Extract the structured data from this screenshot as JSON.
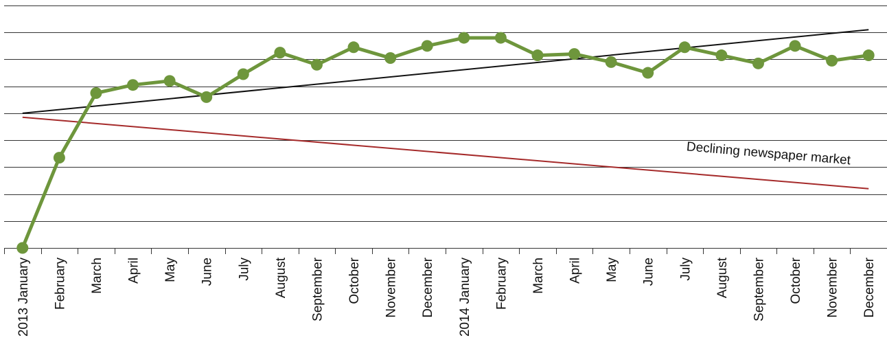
{
  "chart_data": {
    "type": "line",
    "title": "",
    "xlabel": "",
    "ylabel": "",
    "ylim": [
      0,
      9
    ],
    "grid": true,
    "legend": "none",
    "categories": [
      "2013 January",
      "February",
      "March",
      "April",
      "May",
      "June",
      "July",
      "August",
      "September",
      "October",
      "November",
      "December",
      "2014 January",
      "February",
      "March",
      "April",
      "May",
      "June",
      "July",
      "August",
      "September",
      "October",
      "November",
      "December"
    ],
    "series": [
      {
        "values": [
          0.0,
          3.35,
          5.75,
          6.05,
          6.2,
          5.6,
          6.45,
          7.25,
          6.8,
          7.45,
          7.05,
          7.5,
          7.8,
          7.8,
          7.15,
          7.2,
          6.9,
          6.5,
          7.45,
          7.15,
          6.85,
          7.5,
          6.95,
          7.15
        ],
        "color": "#6e963c"
      }
    ],
    "trendlines": [
      {
        "start": [
          1,
          5.0
        ],
        "end": [
          24,
          8.1
        ],
        "color": "#111111"
      },
      {
        "start": [
          1,
          4.85
        ],
        "end": [
          24,
          2.2
        ],
        "color": "#a52a2a"
      }
    ],
    "annotations": [
      {
        "text": "Declining newspaper market",
        "x": 23.5,
        "y": 3.1
      }
    ],
    "colors": {
      "series": "#6e963c",
      "trend_up": "#111111",
      "trend_down": "#a52a2a",
      "grid": "#333333"
    }
  }
}
